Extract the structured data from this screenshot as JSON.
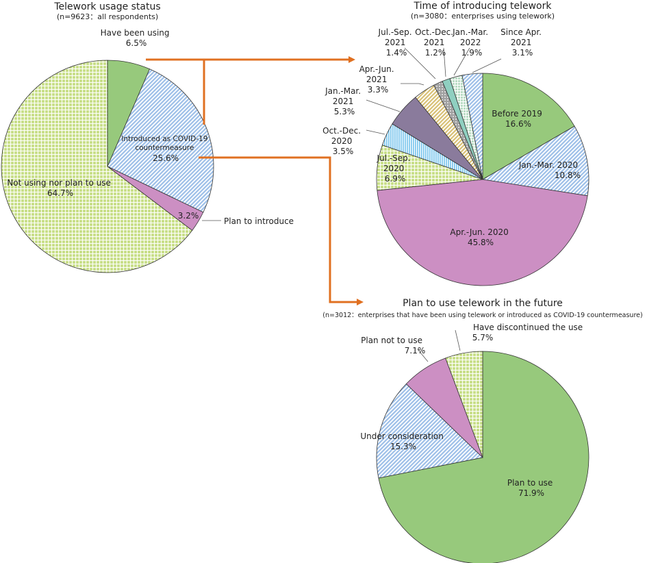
{
  "colors": {
    "green": "#97c97c",
    "light_green": "#c9df8a",
    "blue": "#9dbfe8",
    "pink": "#cc8fc3",
    "purple": "#8a7b9c",
    "light_blue": "#7fc8ee",
    "tan": "#d8c075",
    "gray": "#a0a0a0",
    "teal": "#8fcfc0",
    "mint": "#b9dcc4",
    "arrow": "#e07021"
  },
  "chart_data": [
    {
      "type": "pie",
      "title": "Telework usage status",
      "subtitle": "(n=9623：all respondents)",
      "unit": "%",
      "slices": [
        {
          "label": "Have been using",
          "value": 6.5,
          "value_text": "6.5%",
          "color": "green",
          "pattern": "solid"
        },
        {
          "label": "Introduced as COVID-19 countermeasure",
          "label_lines": [
            "Introduced as COVID-19",
            "countermeasure"
          ],
          "value": 25.6,
          "value_text": "25.6%",
          "color": "blue",
          "pattern": "diagonal"
        },
        {
          "label": "Plan to introduce",
          "value": 3.2,
          "value_text": "3.2%",
          "color": "pink",
          "pattern": "solid"
        },
        {
          "label": "Not using nor plan to use",
          "value": 64.7,
          "value_text": "64.7%",
          "color": "light_green",
          "pattern": "grid"
        }
      ]
    },
    {
      "type": "pie",
      "title": "Time of introducing telework",
      "subtitle": "(n=3080：enterprises using telework)",
      "unit": "%",
      "slices": [
        {
          "label": "Before 2019",
          "value": 16.6,
          "value_text": "16.6%",
          "color": "green",
          "pattern": "solid"
        },
        {
          "label": "Jan.-Mar. 2020",
          "value": 10.8,
          "value_text": "10.8%",
          "color": "blue",
          "pattern": "diagonal"
        },
        {
          "label": "Apr.-Jun. 2020",
          "value": 45.8,
          "value_text": "45.8%",
          "color": "pink",
          "pattern": "solid"
        },
        {
          "label": "Jul.-Sep. 2020",
          "label_lines": [
            "Jul.-Sep.",
            "2020"
          ],
          "value": 6.9,
          "value_text": "6.9%",
          "color": "light_green",
          "pattern": "grid"
        },
        {
          "label": "Oct.-Dec. 2020",
          "label_lines": [
            "Oct.-Dec.",
            "2020"
          ],
          "value": 3.5,
          "value_text": "3.5%",
          "color": "light_blue",
          "pattern": "vertical"
        },
        {
          "label": "Jan.-Mar. 2021",
          "label_lines": [
            "Jan.-Mar.",
            "2021"
          ],
          "value": 5.3,
          "value_text": "5.3%",
          "color": "purple",
          "pattern": "solid"
        },
        {
          "label": "Apr.-Jun. 2021",
          "label_lines": [
            "Apr.-Jun.",
            "2021"
          ],
          "value": 3.3,
          "value_text": "3.3%",
          "color": "tan",
          "pattern": "diagonal"
        },
        {
          "label": "Jul.-Sep. 2021",
          "label_lines": [
            "Jul.-Sep.",
            "2021"
          ],
          "value": 1.4,
          "value_text": "1.4%",
          "color": "gray",
          "pattern": "dots"
        },
        {
          "label": "Oct.-Dec. 2021",
          "label_lines": [
            "Oct.-Dec.",
            "2021"
          ],
          "value": 1.2,
          "value_text": "1.2%",
          "color": "teal",
          "pattern": "solid"
        },
        {
          "label": "Jan.-Mar. 2022",
          "label_lines": [
            "Jan.-Mar.",
            "2022"
          ],
          "value": 1.9,
          "value_text": "1.9%",
          "color": "mint",
          "pattern": "grid"
        },
        {
          "label": "Since Apr. 2021",
          "label_lines": [
            "Since Apr.",
            "2021"
          ],
          "value": 3.1,
          "value_text": "3.1%",
          "color": "blue",
          "pattern": "diagonal"
        }
      ]
    },
    {
      "type": "pie",
      "title": "Plan to use telework in the future",
      "subtitle": "(n=3012：enterprises that have been using telework or introduced as COVID-19 countermeasure)",
      "unit": "%",
      "slices": [
        {
          "label": "Plan to use",
          "value": 71.9,
          "value_text": "71.9%",
          "color": "green",
          "pattern": "solid"
        },
        {
          "label": "Under consideration",
          "value": 15.3,
          "value_text": "15.3%",
          "color": "blue",
          "pattern": "diagonal"
        },
        {
          "label": "Plan not to use",
          "value": 7.1,
          "value_text": "7.1%",
          "color": "pink",
          "pattern": "solid"
        },
        {
          "label": "Have discontinued the use",
          "value": 5.7,
          "value_text": "5.7%",
          "color": "light_green",
          "pattern": "grid"
        }
      ]
    }
  ]
}
